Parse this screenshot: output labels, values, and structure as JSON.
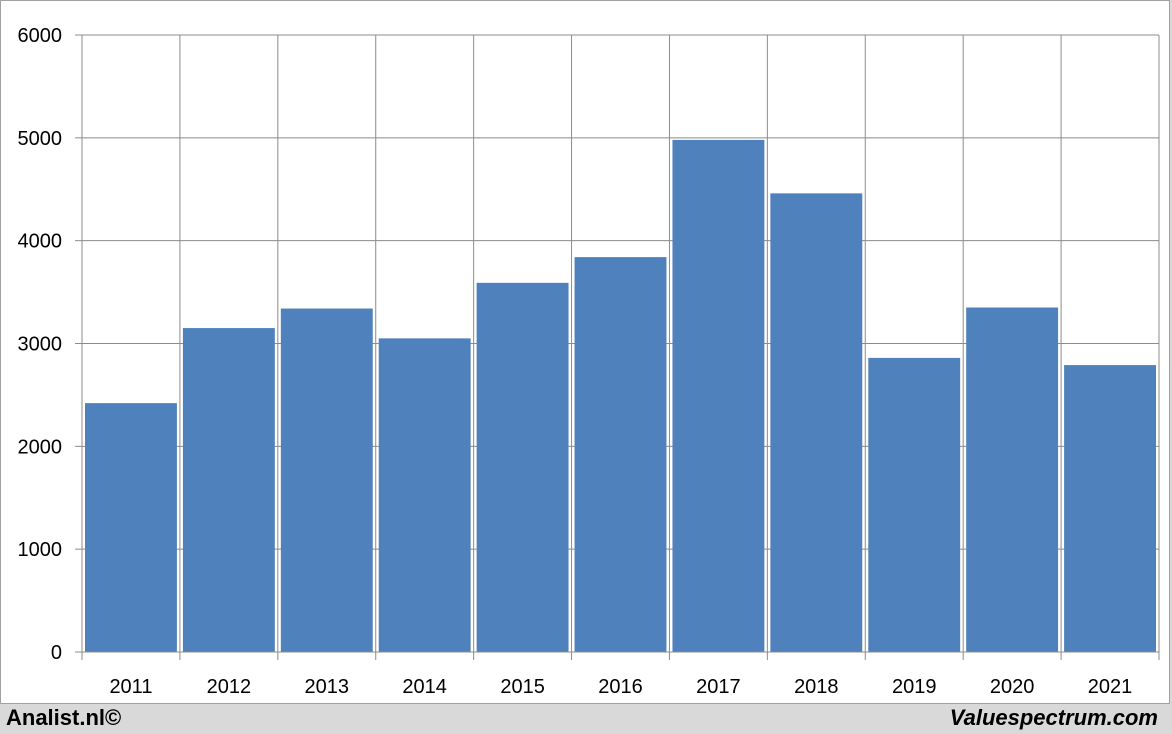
{
  "chart_data": {
    "type": "bar",
    "categories": [
      "2011",
      "2012",
      "2013",
      "2014",
      "2015",
      "2016",
      "2017",
      "2018",
      "2019",
      "2020",
      "2021"
    ],
    "values": [
      2420,
      3150,
      3340,
      3050,
      3590,
      3840,
      4980,
      4460,
      2860,
      3350,
      2790
    ],
    "ylim": [
      0,
      6000
    ],
    "yticks": [
      0,
      1000,
      2000,
      3000,
      4000,
      5000,
      6000
    ],
    "grid": true,
    "bar_color": "#4f81bd",
    "title": "",
    "xlabel": "",
    "ylabel": ""
  },
  "footer": {
    "left": "Analist.nl©",
    "right": "Valuespectrum.com"
  },
  "colors": {
    "grid": "#8c8c8c",
    "background": "#ffffff",
    "outer_background": "#d9d9d9"
  }
}
